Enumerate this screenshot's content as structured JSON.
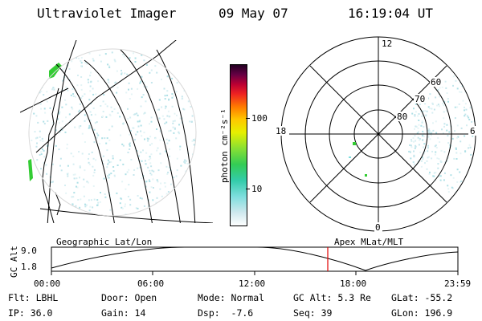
{
  "header": {
    "title": "Ultraviolet Imager",
    "date": "09 May 07",
    "time": "16:19:04 UT"
  },
  "colorbar": {
    "label": "photon cm⁻²s⁻¹",
    "ticks": [
      "100",
      "10"
    ]
  },
  "polar_plot": {
    "mlt_labels": [
      "12",
      "18",
      "6",
      "0"
    ],
    "lat_labels": [
      "60",
      "70",
      "80"
    ]
  },
  "altitude_panel": {
    "left_label": "Geographic Lat/Lon",
    "right_label": "Apex MLat/MLT",
    "y_axis_label": "GC Alt",
    "y_ticks": [
      "9.0",
      "1.8"
    ],
    "x_ticks": [
      "00:00",
      "06:00",
      "12:00",
      "18:00",
      "23:59"
    ],
    "marker_time": "16:19",
    "marker_color": "#e00000"
  },
  "info": {
    "filter": "Flt: LBHL",
    "door": "Door: Open",
    "mode": "Mode: Normal",
    "gc_alt": "GC Alt: 5.3 Re",
    "glat": "GLat: -55.2",
    "ip": "IP: 36.0",
    "gain": "Gain: 14",
    "dsp": "Dsp:  -7.6",
    "seq": "Seq: 39",
    "glon": "GLon: 196.9"
  }
}
